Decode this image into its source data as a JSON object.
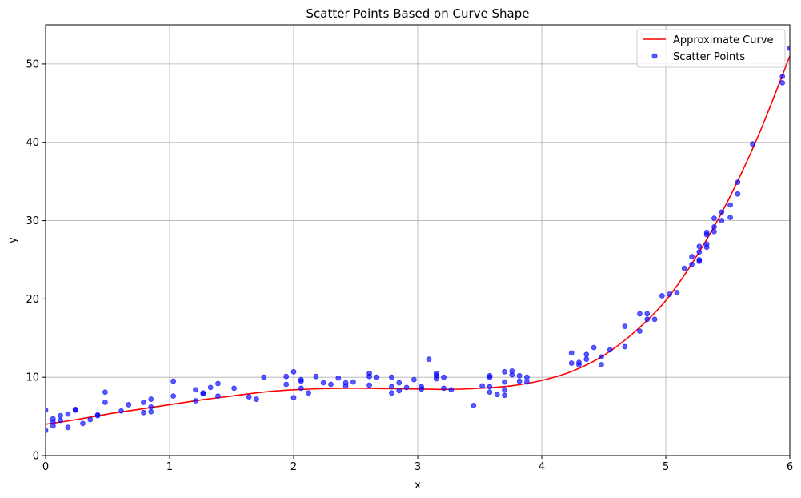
{
  "chart_data": {
    "type": "scatter",
    "title": "Scatter Points Based on Curve Shape",
    "xlabel": "x",
    "ylabel": "y",
    "xlim": [
      0,
      6
    ],
    "ylim": [
      0,
      55
    ],
    "xticks": [
      "0",
      "1",
      "2",
      "3",
      "4",
      "5",
      "6"
    ],
    "yticks": [
      "0",
      "10",
      "20",
      "30",
      "40",
      "50"
    ],
    "grid": true,
    "legend_position": "top-right",
    "series": [
      {
        "name": "Approximate Curve",
        "kind": "line",
        "color": "#ff0000",
        "x": [
          0,
          0.25,
          0.5,
          0.75,
          1,
          1.25,
          1.5,
          1.75,
          2,
          2.25,
          2.5,
          2.75,
          3,
          3.25,
          3.5,
          3.75,
          4,
          4.25,
          4.5,
          4.75,
          5,
          5.25,
          5.5,
          5.75,
          6
        ],
        "y": [
          4.0,
          4.6,
          5.3,
          5.9,
          6.5,
          7.1,
          7.6,
          8.1,
          8.4,
          8.55,
          8.6,
          8.55,
          8.5,
          8.45,
          8.6,
          8.9,
          9.6,
          10.8,
          12.8,
          15.8,
          19.8,
          25.5,
          32.5,
          41.0,
          51.0
        ]
      },
      {
        "name": "Scatter Points",
        "kind": "scatter",
        "color": "#0000ff",
        "x": [
          0.0,
          0.0,
          0.06,
          0.06,
          0.06,
          0.12,
          0.12,
          0.18,
          0.18,
          0.24,
          0.24,
          0.3,
          0.36,
          0.42,
          0.42,
          0.48,
          0.48,
          0.61,
          0.67,
          0.79,
          0.79,
          0.85,
          0.85,
          0.85,
          1.03,
          1.03,
          1.21,
          1.21,
          1.27,
          1.27,
          1.33,
          1.39,
          1.39,
          1.52,
          1.64,
          1.7,
          1.76,
          1.94,
          1.94,
          2.0,
          2.0,
          2.06,
          2.06,
          2.06,
          2.12,
          2.18,
          2.24,
          2.3,
          2.36,
          2.42,
          2.42,
          2.48,
          2.61,
          2.61,
          2.61,
          2.67,
          2.79,
          2.79,
          2.79,
          2.85,
          2.85,
          2.91,
          2.97,
          3.03,
          3.03,
          3.09,
          3.15,
          3.15,
          3.15,
          3.21,
          3.21,
          3.27,
          3.45,
          3.52,
          3.58,
          3.58,
          3.58,
          3.58,
          3.64,
          3.7,
          3.7,
          3.7,
          3.7,
          3.76,
          3.76,
          3.82,
          3.82,
          3.88,
          3.88,
          4.24,
          4.24,
          4.3,
          4.3,
          4.36,
          4.36,
          4.42,
          4.48,
          4.48,
          4.55,
          4.67,
          4.67,
          4.79,
          4.79,
          4.85,
          4.85,
          4.91,
          4.97,
          5.03,
          5.09,
          5.15,
          5.21,
          5.21,
          5.27,
          5.27,
          5.27,
          5.27,
          5.33,
          5.33,
          5.33,
          5.33,
          5.39,
          5.39,
          5.39,
          5.45,
          5.45,
          5.52,
          5.52,
          5.58,
          5.58,
          5.7,
          5.94,
          5.94,
          6.0
        ],
        "y": [
          3.2,
          5.8,
          3.8,
          4.3,
          4.7,
          4.5,
          5.1,
          3.6,
          5.3,
          5.8,
          5.9,
          4.1,
          4.6,
          5.1,
          5.2,
          6.8,
          8.1,
          5.7,
          6.5,
          5.5,
          6.8,
          5.6,
          6.2,
          7.2,
          7.6,
          9.5,
          7.0,
          8.4,
          7.9,
          8.0,
          8.7,
          7.6,
          9.2,
          8.6,
          7.5,
          7.2,
          10.0,
          9.1,
          10.1,
          7.4,
          10.7,
          8.6,
          9.5,
          9.7,
          8.0,
          10.1,
          9.3,
          9.1,
          9.9,
          8.9,
          9.3,
          9.4,
          9.0,
          10.1,
          10.5,
          10.0,
          8.0,
          8.8,
          10.0,
          8.3,
          9.3,
          8.7,
          9.7,
          8.5,
          8.8,
          12.3,
          9.8,
          10.2,
          10.5,
          8.6,
          10.0,
          8.4,
          6.4,
          8.9,
          8.1,
          8.8,
          10.0,
          10.2,
          7.8,
          7.7,
          8.4,
          9.4,
          10.7,
          10.3,
          10.8,
          9.5,
          10.2,
          9.4,
          10.0,
          11.8,
          13.1,
          11.6,
          11.9,
          12.3,
          12.9,
          13.8,
          11.6,
          12.6,
          13.5,
          13.9,
          16.5,
          15.9,
          18.1,
          17.4,
          18.1,
          17.4,
          20.4,
          20.6,
          20.8,
          23.9,
          24.4,
          25.4,
          24.8,
          25.0,
          26.0,
          26.7,
          26.6,
          27.0,
          28.2,
          28.5,
          28.6,
          29.2,
          30.3,
          30.0,
          31.1,
          30.4,
          32.0,
          33.4,
          34.9,
          39.8,
          47.6,
          48.4,
          52.0
        ]
      }
    ]
  }
}
